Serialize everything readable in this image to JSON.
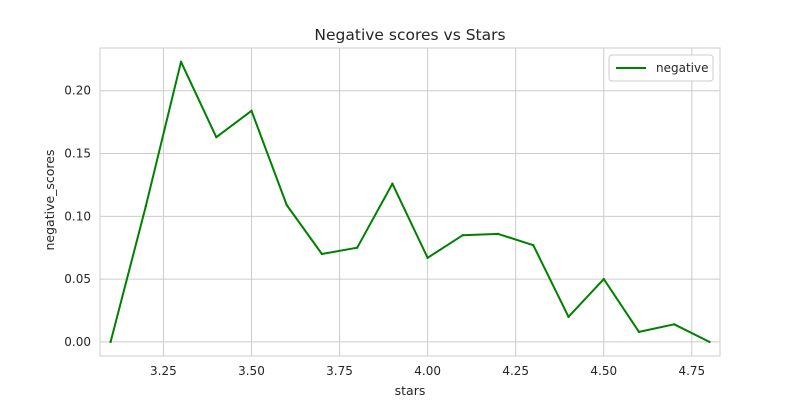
{
  "chart_data": {
    "type": "line",
    "title": "Negative scores vs Stars",
    "xlabel": "stars",
    "ylabel": "negative_scores",
    "xlim": [
      3.07,
      4.83
    ],
    "ylim": [
      -0.0112,
      0.234
    ],
    "xticks": [
      3.25,
      3.5,
      3.75,
      4.0,
      4.25,
      4.5,
      4.75
    ],
    "xtick_labels": [
      "3.25",
      "3.50",
      "3.75",
      "4.00",
      "4.25",
      "4.50",
      "4.75"
    ],
    "yticks": [
      0.0,
      0.05,
      0.1,
      0.15,
      0.2
    ],
    "ytick_labels": [
      "0.00",
      "0.05",
      "0.10",
      "0.15",
      "0.20"
    ],
    "grid": true,
    "legend": {
      "position": "upper right",
      "entries": [
        "negative"
      ]
    },
    "series": [
      {
        "name": "negative",
        "color": "#008000",
        "x": [
          3.1,
          3.2,
          3.3,
          3.4,
          3.5,
          3.6,
          3.7,
          3.8,
          3.9,
          4.0,
          4.1,
          4.2,
          4.3,
          4.4,
          4.5,
          4.6,
          4.7,
          4.8
        ],
        "y": [
          0.0,
          0.108,
          0.223,
          0.163,
          0.184,
          0.109,
          0.07,
          0.075,
          0.126,
          0.067,
          0.085,
          0.086,
          0.077,
          0.02,
          0.05,
          0.008,
          0.014,
          0.0
        ]
      }
    ]
  }
}
